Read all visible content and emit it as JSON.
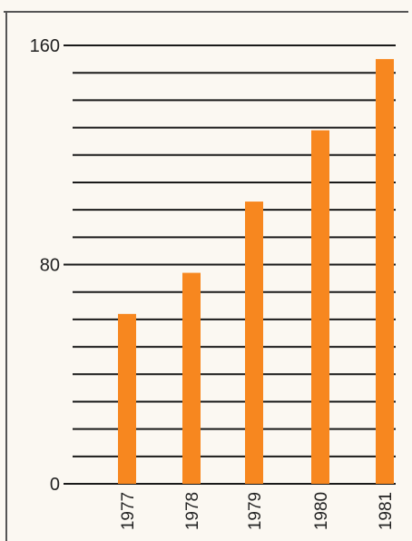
{
  "chart_data": {
    "type": "bar",
    "categories": [
      "1977",
      "1978",
      "1979",
      "1980",
      "1981"
    ],
    "values": [
      62,
      77,
      103,
      129,
      155
    ],
    "ylim": [
      0,
      160
    ],
    "yticks": [
      "160",
      "80",
      "0"
    ],
    "ytick_values": [
      160,
      80,
      0
    ],
    "grid": true,
    "gridline_step": 10,
    "bar_color": "#f7871f",
    "grid_color": "#1a1a1a"
  }
}
